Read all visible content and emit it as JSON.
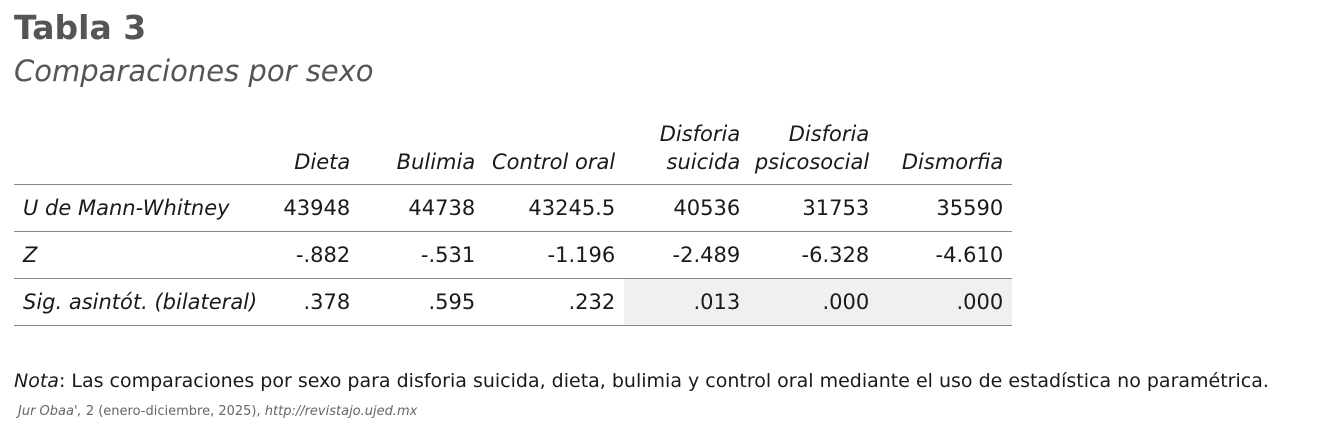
{
  "header": {
    "title": "Tabla 3",
    "subtitle": "Comparaciones por sexo"
  },
  "table": {
    "columns": [
      [
        "Dieta"
      ],
      [
        "Bulimia"
      ],
      [
        "Control oral"
      ],
      [
        "Disforia",
        "suicida"
      ],
      [
        "Disforia",
        "psicosocial"
      ],
      [
        "Dismorfia"
      ]
    ],
    "rows": [
      {
        "label": "U de Mann-Whitney",
        "cells": [
          "43948",
          "44738",
          "43245.5",
          "40536",
          "31753",
          "35590"
        ]
      },
      {
        "label": "Z",
        "cells": [
          "-.882",
          "-.531",
          "-1.196",
          "-2.489",
          "-6.328",
          "-4.610"
        ]
      },
      {
        "label": "Sig. asintót. (bilateral)",
        "cells": [
          ".378",
          ".595",
          ".232",
          ".013",
          ".000",
          ".000"
        ]
      }
    ]
  },
  "note": {
    "label": "Nota",
    "text": ": Las comparaciones por sexo para disforia suicida, dieta, bulimia y control oral mediante el uso de estadística no paramétrica."
  },
  "footer": {
    "journal": "Jur Obaa',",
    "issue": " 2 (enero-diciembre, 2025), ",
    "url": "http://revistajo.ujed.mx"
  }
}
